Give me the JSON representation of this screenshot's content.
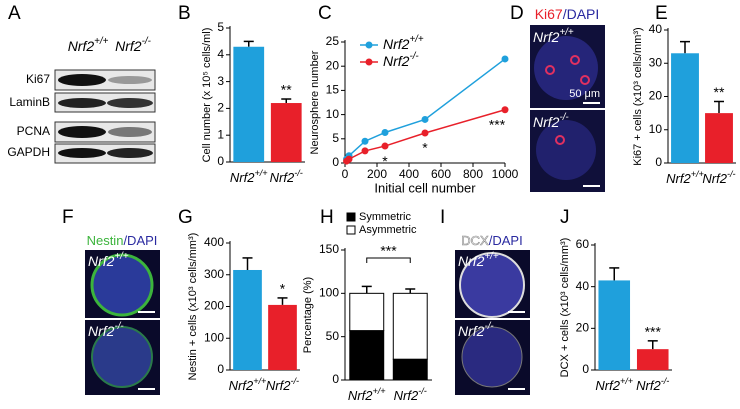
{
  "blot": {
    "panel": "A",
    "columns": [
      "Nrf2+/+",
      "Nrf2-/-"
    ],
    "rows": [
      "Ki67",
      "LaminB",
      "PCNA",
      "GAPDH"
    ]
  },
  "images": [
    {
      "panel": "D",
      "stain": "Ki67",
      "counter": "/DAPI",
      "top": "Nrf2+/+",
      "bottom": "Nrf2-/-",
      "scale_label": "50 μm"
    },
    {
      "panel": "F",
      "stain": "Nestin",
      "counter": "/DAPI",
      "top": "Nrf2+/+",
      "bottom": "Nrf2-/-"
    },
    {
      "panel": "I",
      "stain": "DCX",
      "counter": "/DAPI",
      "top": "Nrf2+/+",
      "bottom": "Nrf2-/-"
    }
  ],
  "chart_data": [
    {
      "type": "bar",
      "panel": "B",
      "ylabel": "Cell number (x 10⁵ cells/ml)",
      "categories": [
        "Nrf2+/+",
        "Nrf2-/-"
      ],
      "values": [
        4.3,
        2.2
      ],
      "errors": [
        0.2,
        0.15
      ],
      "colors": [
        "#1fa0dc",
        "#e8202a"
      ],
      "significance": [
        null,
        "**"
      ],
      "ylim": [
        0,
        5
      ],
      "yticks": [
        0,
        1,
        2,
        3,
        4,
        5
      ]
    },
    {
      "type": "line",
      "panel": "C",
      "xlabel": "Initial cell number",
      "ylabel": "Neurosphere number",
      "x": [
        10,
        25,
        125,
        250,
        500,
        1000
      ],
      "series": [
        {
          "name": "Nrf2+/+",
          "color": "#1fa0dc",
          "values": [
            0.8,
            1.5,
            4.5,
            6.3,
            9,
            21.5
          ]
        },
        {
          "name": "Nrf2-/-",
          "color": "#e8202a",
          "values": [
            0.4,
            0.8,
            2.5,
            3.5,
            6.2,
            11
          ],
          "significance": [
            null,
            null,
            null,
            "*",
            "*",
            "***"
          ]
        }
      ],
      "xlim": [
        0,
        1000
      ],
      "xticks": [
        0,
        200,
        400,
        600,
        800,
        1000
      ],
      "ylim": [
        0,
        25
      ],
      "yticks": [
        0,
        5,
        10,
        15,
        20,
        25
      ]
    },
    {
      "type": "bar",
      "panel": "E",
      "ylabel": "Ki67 + cells (x10³ cells/mm³)",
      "categories": [
        "Nrf2+/+",
        "Nrf2-/-"
      ],
      "values": [
        33,
        15
      ],
      "errors": [
        3.5,
        3.5
      ],
      "colors": [
        "#1fa0dc",
        "#e8202a"
      ],
      "significance": [
        null,
        "**"
      ],
      "ylim": [
        0,
        40
      ],
      "yticks": [
        0,
        10,
        20,
        30,
        40
      ]
    },
    {
      "type": "bar",
      "panel": "G",
      "ylabel": "Nestin + cells (x10³ cells/mm³)",
      "categories": [
        "Nrf2+/+",
        "Nrf2-/-"
      ],
      "values": [
        315,
        205
      ],
      "errors": [
        38,
        22
      ],
      "colors": [
        "#1fa0dc",
        "#e8202a"
      ],
      "significance": [
        null,
        "*"
      ],
      "ylim": [
        0,
        400
      ],
      "yticks": [
        0,
        100,
        200,
        300,
        400
      ]
    },
    {
      "type": "stacked",
      "panel": "H",
      "ylabel": "Percentage (%)",
      "categories": [
        "Nrf2+/+",
        "Nrf2-/-"
      ],
      "series": [
        {
          "name": "Symmetric",
          "color": "#000000",
          "values": [
            57,
            24
          ],
          "errors": [
            9,
            5
          ]
        },
        {
          "name": "Asymmetric",
          "color": "#ffffff",
          "values": [
            43,
            76
          ],
          "errors": [
            8,
            5
          ]
        }
      ],
      "comparison": "***",
      "ylim": [
        0,
        150
      ],
      "yticks": [
        0,
        50,
        100,
        150
      ]
    },
    {
      "type": "bar",
      "panel": "J",
      "ylabel": "DCX + cells (x10³ cells/mm³)",
      "categories": [
        "Nrf2+/+",
        "Nrf2-/-"
      ],
      "values": [
        43,
        10
      ],
      "errors": [
        6,
        4
      ],
      "colors": [
        "#1fa0dc",
        "#e8202a"
      ],
      "significance": [
        null,
        "***"
      ],
      "ylim": [
        0,
        60
      ],
      "yticks": [
        0,
        20,
        40,
        60
      ]
    }
  ]
}
